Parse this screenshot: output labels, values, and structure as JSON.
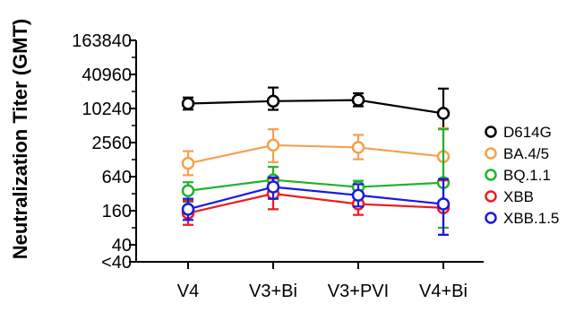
{
  "chart_data": {
    "type": "line",
    "ylabel": "Neutralization Titer (GMT)",
    "xlabel": "",
    "y_scale": "log",
    "categories": [
      "V4",
      "V3+Bi",
      "V3+PVI",
      "V4+Bi"
    ],
    "ylim": [
      20,
      163840
    ],
    "y_ticks": [
      {
        "value": 163840,
        "label": "163840"
      },
      {
        "value": 40960,
        "label": "40960"
      },
      {
        "value": 10240,
        "label": "10240"
      },
      {
        "value": 2560,
        "label": "2560"
      },
      {
        "value": 640,
        "label": "640"
      },
      {
        "value": 160,
        "label": "160"
      },
      {
        "value": 40,
        "label": "40"
      },
      {
        "value": 20,
        "label": "<40"
      }
    ],
    "legend_position": "right",
    "series": [
      {
        "name": "D614G",
        "color": "#000000",
        "values": [
          12500,
          13800,
          14400,
          8400
        ],
        "err_low": [
          9800,
          9700,
          11200,
          4500
        ],
        "err_high": [
          16000,
          24000,
          19000,
          23000
        ]
      },
      {
        "name": "BA.4/5",
        "color": "#f6a04d",
        "values": [
          1100,
          2300,
          2100,
          1450
        ],
        "err_low": [
          680,
          1150,
          1300,
          450
        ],
        "err_high": [
          1800,
          4400,
          3500,
          4600
        ]
      },
      {
        "name": "BQ.1.1",
        "color": "#22b22a",
        "values": [
          360,
          560,
          420,
          500
        ],
        "err_low": [
          230,
          350,
          290,
          80
        ],
        "err_high": [
          510,
          950,
          540,
          4400
        ]
      },
      {
        "name": "XBB",
        "color": "#ee1c1c",
        "values": [
          145,
          320,
          210,
          180
        ],
        "err_low": [
          90,
          170,
          135,
          60
        ],
        "err_high": [
          240,
          590,
          330,
          550
        ]
      },
      {
        "name": "XBB.1.5",
        "color": "#1a1ae0",
        "values": [
          170,
          420,
          300,
          210
        ],
        "err_low": [
          110,
          260,
          190,
          60
        ],
        "err_high": [
          260,
          620,
          470,
          580
        ]
      }
    ]
  }
}
